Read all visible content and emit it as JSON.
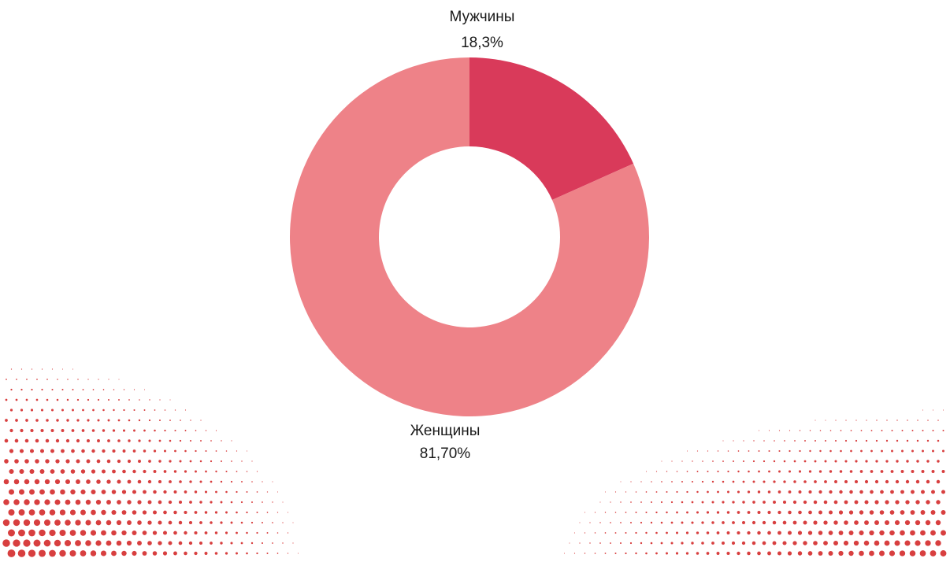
{
  "chart_data": {
    "type": "donut",
    "categories": [
      "Мужчины",
      "Женщины"
    ],
    "values": [
      18.3,
      81.7
    ],
    "value_labels": [
      "18,3%",
      "81,70%"
    ],
    "colors": [
      "#d93a5a",
      "#ee8288"
    ]
  }
}
